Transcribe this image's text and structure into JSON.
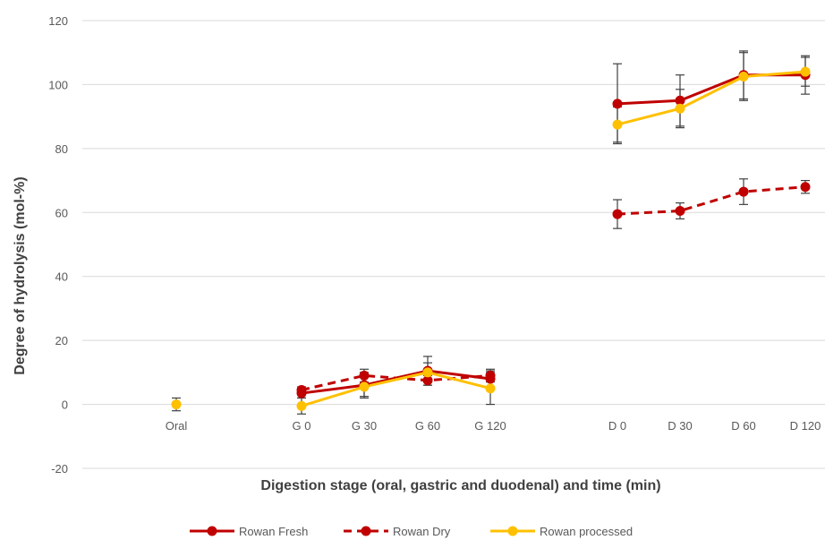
{
  "chart_data": {
    "type": "line",
    "title": "",
    "xlabel": "Digestion stage (oral, gastric and duodenal) and time (min)",
    "ylabel": "Degree of hydrolysis (mol-%)",
    "ylim": [
      -20,
      120
    ],
    "yticks": [
      "-20",
      "0",
      "20",
      "40",
      "60",
      "80",
      "100",
      "120"
    ],
    "categories": [
      "Oral",
      "G 0",
      "G 30",
      "G 60",
      "G 120",
      "D 0",
      "D 30",
      "D 60",
      "D 120"
    ],
    "grid": true,
    "legend_position": "bottom",
    "series": [
      {
        "name": "Rowan Fresh",
        "color": "#c00000",
        "dash": "solid",
        "values": [
          null,
          3.5,
          6,
          10.5,
          8,
          94,
          95,
          103,
          103
        ],
        "errors": [
          null,
          1.5,
          4,
          4.5,
          2.5,
          12.5,
          8,
          7.5,
          6
        ]
      },
      {
        "name": "Rowan Dry",
        "color": "#c00000",
        "dash": "dashed",
        "values": [
          null,
          4.5,
          9,
          7.5,
          9,
          59.5,
          60.5,
          66.5,
          68
        ],
        "errors": [
          null,
          1,
          2,
          1.5,
          2,
          4.5,
          2.5,
          4,
          2
        ]
      },
      {
        "name": "Rowan processed",
        "color": "#ffc000",
        "dash": "solid",
        "values": [
          0,
          -0.5,
          5.5,
          10,
          5,
          87.5,
          92.5,
          102.5,
          104
        ],
        "errors": [
          2,
          2.5,
          3,
          3,
          5,
          5.5,
          6,
          7.5,
          4.5
        ]
      }
    ]
  }
}
